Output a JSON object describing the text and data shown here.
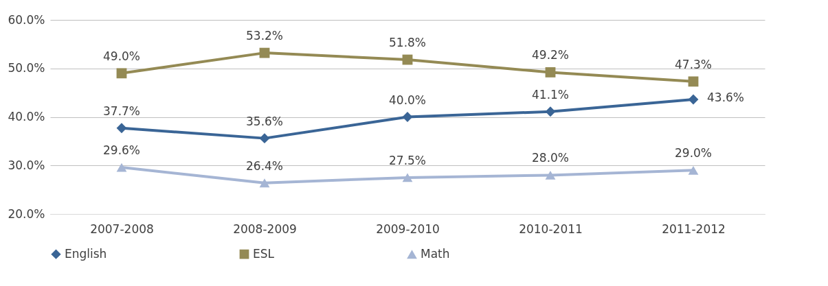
{
  "chart_data": {
    "type": "line",
    "categories": [
      "2007-2008",
      "2008-2009",
      "2009-2010",
      "2010-2011",
      "2011-2012"
    ],
    "series": [
      {
        "name": "English",
        "color": "#3a6596",
        "marker": "diamond",
        "values": [
          37.7,
          35.6,
          40.0,
          41.1,
          43.6
        ],
        "value_labels": [
          "37.7%",
          "35.6%",
          "40.0%",
          "41.1%",
          "43.6%"
        ]
      },
      {
        "name": "ESL",
        "color": "#948a54",
        "marker": "square",
        "values": [
          49.0,
          53.2,
          51.8,
          49.2,
          47.3
        ],
        "value_labels": [
          "49.0%",
          "53.2%",
          "51.8%",
          "49.2%",
          "47.3%"
        ]
      },
      {
        "name": "Math",
        "color": "#a5b5d4",
        "marker": "triangle",
        "values": [
          29.6,
          26.4,
          27.5,
          28.0,
          29.0
        ],
        "value_labels": [
          "29.6%",
          "26.4%",
          "27.5%",
          "28.0%",
          "29.0%"
        ]
      }
    ],
    "ylim": [
      20,
      60
    ],
    "yticks": [
      {
        "value": 20,
        "label": "20.0%"
      },
      {
        "value": 30,
        "label": "30.0%"
      },
      {
        "value": 40,
        "label": "40.0%"
      },
      {
        "value": 50,
        "label": "50.0%"
      },
      {
        "value": 60,
        "label": "60.0%"
      }
    ],
    "grid": "y",
    "legend": "bottom",
    "line_style": "solid"
  }
}
